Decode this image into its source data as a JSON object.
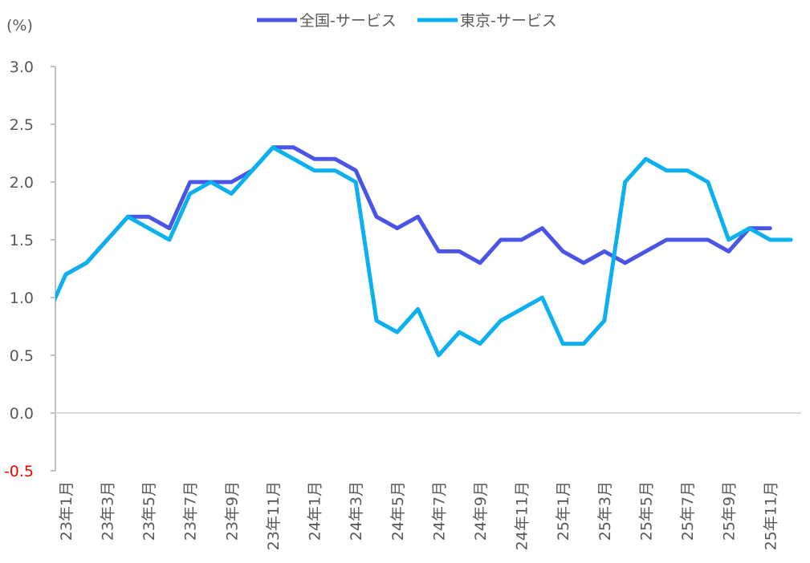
{
  "chart_data": {
    "type": "line",
    "unit_label": "(%)",
    "ylim": [
      -0.5,
      3.0
    ],
    "yticks": [
      "3.0",
      "2.5",
      "2.0",
      "1.5",
      "1.0",
      "0.5",
      "0.0",
      "-0.5"
    ],
    "ytick_values": [
      3.0,
      2.5,
      2.0,
      1.5,
      1.0,
      0.5,
      0.0,
      -0.5
    ],
    "negative_tick_color": "#FF0000",
    "grid": "zero-line only",
    "legend_position": "top-center",
    "categories": [
      "23年1月",
      "23年2月",
      "23年3月",
      "23年4月",
      "23年5月",
      "23年6月",
      "23年7月",
      "23年8月",
      "23年9月",
      "23年10月",
      "23年11月",
      "23年12月",
      "24年1月",
      "24年2月",
      "24年3月",
      "24年4月",
      "24年5月",
      "24年6月",
      "24年7月",
      "24年8月",
      "24年9月",
      "24年10月",
      "24年11月",
      "24年12月",
      "25年1月",
      "25年2月",
      "25年3月",
      "25年4月",
      "25年5月",
      "25年6月",
      "25年7月",
      "25年8月",
      "25年9月",
      "25年10月",
      "25年11月",
      "25年12月"
    ],
    "xtick_labels": [
      "23年1月",
      "23年3月",
      "23年5月",
      "23年7月",
      "23年9月",
      "23年11月",
      "24年1月",
      "24年3月",
      "24年5月",
      "24年7月",
      "24年9月",
      "24年11月",
      "25年1月",
      "25年3月",
      "25年5月",
      "25年7月",
      "25年9月",
      "25年11月"
    ],
    "series": [
      {
        "name": "全国-サービス",
        "color": "#4A55E8",
        "values": [
          1.2,
          1.3,
          1.5,
          1.7,
          1.7,
          1.6,
          2.0,
          2.0,
          2.0,
          2.1,
          2.3,
          2.3,
          2.2,
          2.2,
          2.1,
          1.7,
          1.6,
          1.7,
          1.4,
          1.4,
          1.3,
          1.5,
          1.5,
          1.6,
          1.4,
          1.3,
          1.4,
          1.3,
          1.4,
          1.5,
          1.5,
          1.5,
          1.4,
          1.6,
          1.6,
          null
        ]
      },
      {
        "name": "東京-サービス",
        "color": "#0BB0F0",
        "leading_value": 0.8,
        "values": [
          1.2,
          1.3,
          1.5,
          1.7,
          1.6,
          1.5,
          1.9,
          2.0,
          1.9,
          2.1,
          2.3,
          2.2,
          2.1,
          2.1,
          2.0,
          0.8,
          0.7,
          0.9,
          0.5,
          0.7,
          0.6,
          0.8,
          0.9,
          1.0,
          0.6,
          0.6,
          0.8,
          2.0,
          2.2,
          2.1,
          2.1,
          2.0,
          1.5,
          1.6,
          1.5,
          1.5
        ]
      }
    ]
  }
}
